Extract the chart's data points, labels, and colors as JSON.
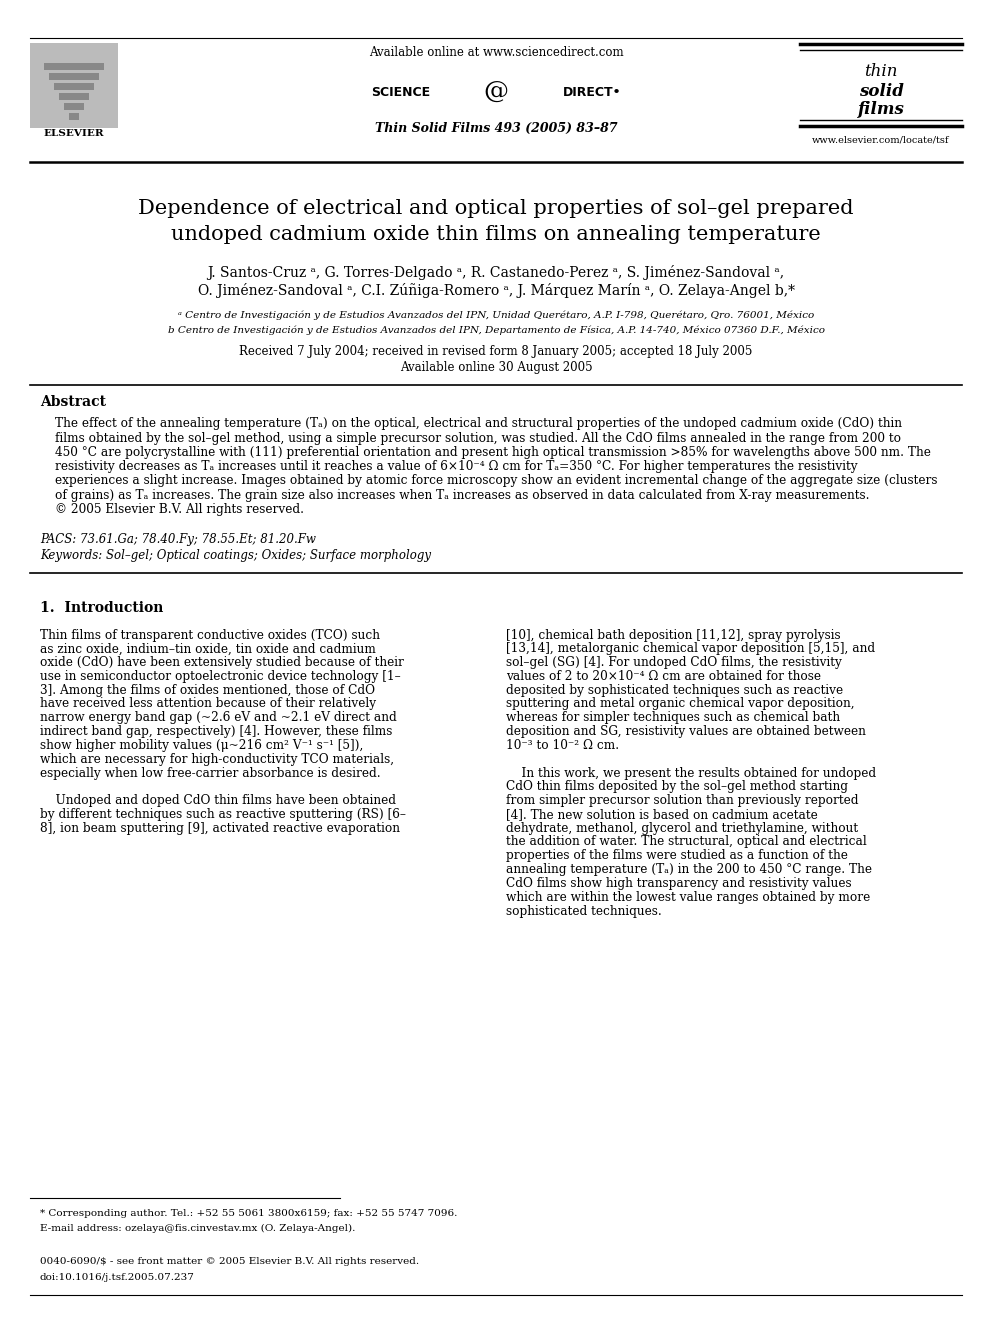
{
  "bg_color": "#ffffff",
  "header": {
    "available_online": "Available online at www.sciencedirect.com",
    "journal_info": "Thin Solid Films 493 (2005) 83–87",
    "elsevier_label": "ELSEVIER",
    "website": "www.elsevier.com/locate/tsf"
  },
  "title_line1": "Dependence of electrical and optical properties of sol–gel prepared",
  "title_line2": "undoped cadmium oxide thin films on annealing temperature",
  "author_line1": "J. Santos-Cruz ᵃ, G. Torres-Delgado ᵃ, R. Castanedo-Perez ᵃ, S. Jiménez-Sandoval ᵃ,",
  "author_line2": "O. Jiménez-Sandoval ᵃ, C.I. Zúñiga-Romero ᵃ, J. Márquez Marín ᵃ, O. Zelaya-Angel b,*",
  "affil_a": "ᵃ Centro de Investigación y de Estudios Avanzados del IPN, Unidad Querétaro, A.P. I-798, Querétaro, Qro. 76001, México",
  "affil_b": "b Centro de Investigación y de Estudios Avanzados del IPN, Departamento de Física, A.P. 14-740, México 07360 D.F., México",
  "received": "Received 7 July 2004; received in revised form 8 January 2005; accepted 18 July 2005",
  "available": "Available online 30 August 2005",
  "abstract_title": "Abstract",
  "abstract_lines": [
    "The effect of the annealing temperature (Tₐ) on the optical, electrical and structural properties of the undoped cadmium oxide (CdO) thin",
    "films obtained by the sol–gel method, using a simple precursor solution, was studied. All the CdO films annealed in the range from 200 to",
    "450 °C are polycrystalline with (111) preferential orientation and present high optical transmission >85% for wavelengths above 500 nm. The",
    "resistivity decreases as Tₐ increases until it reaches a value of 6×10⁻⁴ Ω cm for Tₐ=350 °C. For higher temperatures the resistivity",
    "experiences a slight increase. Images obtained by atomic force microscopy show an evident incremental change of the aggregate size (clusters",
    "of grains) as Tₐ increases. The grain size also increases when Tₐ increases as observed in data calculated from X-ray measurements.",
    "© 2005 Elsevier B.V. All rights reserved."
  ],
  "pacs": "PACS: 73.61.Ga; 78.40.Fy; 78.55.Et; 81.20.Fw",
  "keywords": "Keywords: Sol–gel; Optical coatings; Oxides; Surface morphology",
  "section1_title": "1.  Introduction",
  "col1_lines": [
    "Thin films of transparent conductive oxides (TCO) such",
    "as zinc oxide, indium–tin oxide, tin oxide and cadmium",
    "oxide (CdO) have been extensively studied because of their",
    "use in semiconductor optoelectronic device technology [1–",
    "3]. Among the films of oxides mentioned, those of CdO",
    "have received less attention because of their relatively",
    "narrow energy band gap (~2.6 eV and ~2.1 eV direct and",
    "indirect band gap, respectively) [4]. However, these films",
    "show higher mobility values (μ~216 cm² V⁻¹ s⁻¹ [5]),",
    "which are necessary for high-conductivity TCO materials,",
    "especially when low free-carrier absorbance is desired.",
    "",
    "    Undoped and doped CdO thin films have been obtained",
    "by different techniques such as reactive sputtering (RS) [6–",
    "8], ion beam sputtering [9], activated reactive evaporation"
  ],
  "col2_lines": [
    "[10], chemical bath deposition [11,12], spray pyrolysis",
    "[13,14], metalorganic chemical vapor deposition [5,15], and",
    "sol–gel (SG) [4]. For undoped CdO films, the resistivity",
    "values of 2 to 20×10⁻⁴ Ω cm are obtained for those",
    "deposited by sophisticated techniques such as reactive",
    "sputtering and metal organic chemical vapor deposition,",
    "whereas for simpler techniques such as chemical bath",
    "deposition and SG, resistivity values are obtained between",
    "10⁻³ to 10⁻² Ω cm.",
    "",
    "    In this work, we present the results obtained for undoped",
    "CdO thin films deposited by the sol–gel method starting",
    "from simpler precursor solution than previously reported",
    "[4]. The new solution is based on cadmium acetate",
    "dehydrate, methanol, glycerol and triethylamine, without",
    "the addition of water. The structural, optical and electrical",
    "properties of the films were studied as a function of the",
    "annealing temperature (Tₐ) in the 200 to 450 °C range. The",
    "CdO films show high transparency and resistivity values",
    "which are within the lowest value ranges obtained by more",
    "sophisticated techniques."
  ],
  "footnote_star": "* Corresponding author. Tel.: +52 55 5061 3800x6159; fax: +52 55 5747 7096.",
  "footnote_email": "E-mail address: ozelaya@fis.cinvestav.mx (O. Zelaya-Angel).",
  "footer_line1": "0040-6090/$ - see front matter © 2005 Elsevier B.V. All rights reserved.",
  "footer_line2": "doi:10.1016/j.tsf.2005.07.237",
  "ref_color": "#0000cc"
}
